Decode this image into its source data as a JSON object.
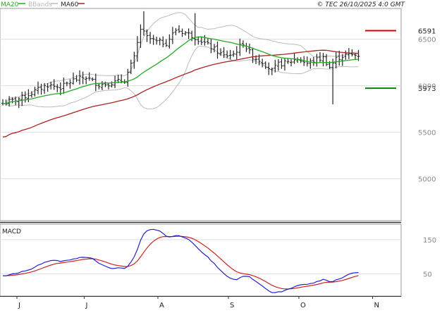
{
  "header": {
    "legend": [
      {
        "label": "MA20",
        "color": "#22aa22"
      },
      {
        "label": "BBands",
        "color": "#bbbbbb"
      },
      {
        "label": "MA60",
        "color": "#aa2222"
      }
    ],
    "copyright": "© TEC 26/10/2025 4:0 GMT"
  },
  "colors": {
    "bars": "#222222",
    "ma20": "#22aa22",
    "ma60": "#aa2222",
    "bbands": "#bbbbbb",
    "grid": "#dddddd",
    "macd": "#2222cc",
    "signal": "#cc2222",
    "resistance": "#cc0000",
    "support": "#008800"
  },
  "chart_data": [
    {
      "type": "line",
      "subtype": "ohlc-bars",
      "y_axis_position": "right",
      "ylim": [
        4550,
        6830
      ],
      "yticks": [
        5000,
        5500,
        6000,
        6500
      ],
      "ytick_labels": [
        "5000",
        "5500",
        "6000",
        "6500"
      ],
      "x_month_labels": [
        "J",
        "J",
        "A",
        "S",
        "O",
        "N"
      ],
      "x_month_index": [
        0,
        21,
        44,
        66,
        88,
        111
      ],
      "levels": [
        {
          "name": "resistance",
          "label": "6591",
          "value": 6591
        },
        {
          "name": "support",
          "label": "5973",
          "value": 5973
        }
      ],
      "series": [
        {
          "name": "MA20"
        },
        {
          "name": "BBands"
        },
        {
          "name": "MA60"
        }
      ]
    },
    {
      "type": "line",
      "title": "MACD",
      "y_axis_position": "right",
      "ylim": [
        -15,
        195
      ],
      "yticks": [
        50,
        150
      ],
      "ytick_labels": [
        "50",
        "150"
      ]
    }
  ]
}
